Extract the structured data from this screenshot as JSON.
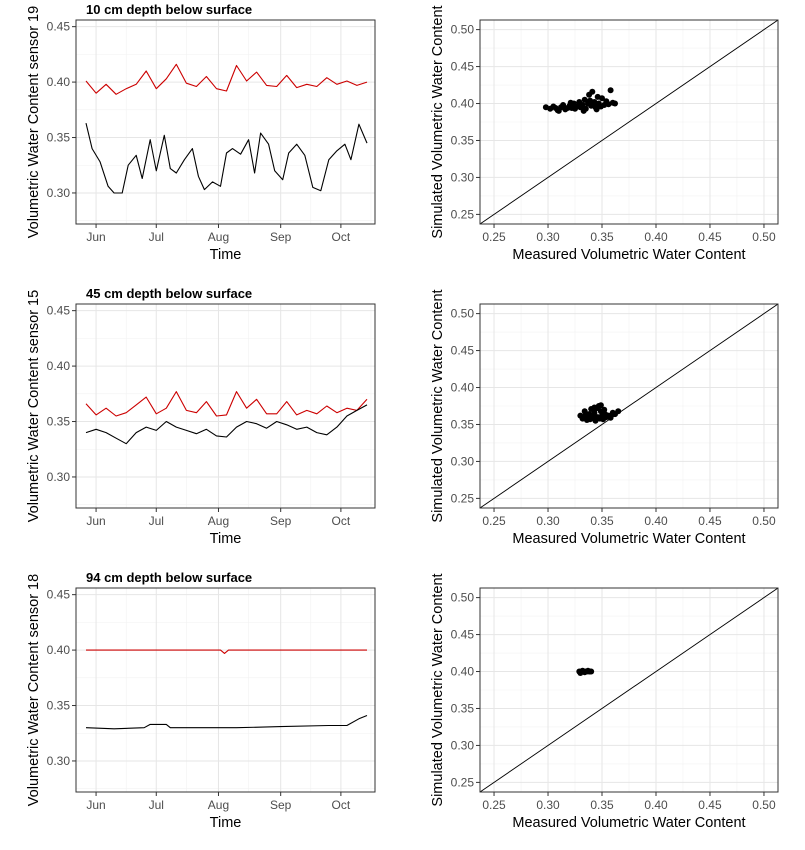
{
  "chart_data": [
    {
      "type": "line",
      "title": "10 cm depth below surface",
      "xlabel": "Time",
      "ylabel": "Volumetric Water Content sensor 19",
      "x_ticks": [
        "Jun",
        "Jul",
        "Aug",
        "Sep",
        "Oct"
      ],
      "x_range": [
        "2017-05-22",
        "2017-10-18"
      ],
      "ylim": [
        0.272,
        0.456
      ],
      "y_ticks": [
        "0.30",
        "0.35",
        "0.40",
        "0.45"
      ],
      "grid": true,
      "colors": {
        "simulated": "#cc0000",
        "measured": "#000000"
      },
      "series": [
        {
          "x": [
            "2017-05-27",
            "2017-06-01",
            "2017-06-06",
            "2017-06-11",
            "2017-06-16",
            "2017-06-21",
            "2017-06-26",
            "2017-07-01",
            "2017-07-06",
            "2017-07-11",
            "2017-07-16",
            "2017-07-21",
            "2017-07-26",
            "2017-07-31",
            "2017-08-05",
            "2017-08-10",
            "2017-08-15",
            "2017-08-20",
            "2017-08-25",
            "2017-08-30",
            "2017-09-04",
            "2017-09-09",
            "2017-09-14",
            "2017-09-19",
            "2017-09-24",
            "2017-09-29",
            "2017-10-04",
            "2017-10-09",
            "2017-10-14"
          ],
          "values": [
            0.401,
            0.39,
            0.398,
            0.389,
            0.394,
            0.398,
            0.41,
            0.394,
            0.403,
            0.416,
            0.399,
            0.396,
            0.405,
            0.394,
            0.392,
            0.415,
            0.401,
            0.409,
            0.397,
            0.396,
            0.406,
            0.395,
            0.398,
            0.396,
            0.404,
            0.398,
            0.401,
            0.397,
            0.4
          ]
        },
        {
          "x": [
            "2017-05-27",
            "2017-05-30",
            "2017-06-03",
            "2017-06-07",
            "2017-06-10",
            "2017-06-14",
            "2017-06-17",
            "2017-06-21",
            "2017-06-24",
            "2017-06-28",
            "2017-07-01",
            "2017-07-05",
            "2017-07-08",
            "2017-07-11",
            "2017-07-15",
            "2017-07-19",
            "2017-07-22",
            "2017-07-25",
            "2017-07-29",
            "2017-08-02",
            "2017-08-05",
            "2017-08-08",
            "2017-08-12",
            "2017-08-16",
            "2017-08-19",
            "2017-08-22",
            "2017-08-26",
            "2017-08-29",
            "2017-09-02",
            "2017-09-05",
            "2017-09-09",
            "2017-09-13",
            "2017-09-17",
            "2017-09-21",
            "2017-09-25",
            "2017-09-29",
            "2017-10-03",
            "2017-10-06",
            "2017-10-10",
            "2017-10-14"
          ],
          "values": [
            0.363,
            0.34,
            0.328,
            0.306,
            0.3,
            0.3,
            0.325,
            0.334,
            0.313,
            0.348,
            0.32,
            0.352,
            0.322,
            0.318,
            0.33,
            0.34,
            0.315,
            0.303,
            0.31,
            0.306,
            0.336,
            0.34,
            0.335,
            0.348,
            0.318,
            0.354,
            0.344,
            0.32,
            0.312,
            0.336,
            0.344,
            0.334,
            0.305,
            0.302,
            0.33,
            0.338,
            0.344,
            0.33,
            0.362,
            0.345
          ]
        }
      ]
    },
    {
      "type": "scatter",
      "xlabel": "Measured Volumetric Water Content",
      "ylabel": "Simulated Volumetric Water Content",
      "xlim": [
        0.237,
        0.513
      ],
      "ylim": [
        0.237,
        0.513
      ],
      "x_ticks": [
        "0.25",
        "0.30",
        "0.35",
        "0.40",
        "0.45",
        "0.50"
      ],
      "y_ticks": [
        "0.25",
        "0.30",
        "0.35",
        "0.40",
        "0.45",
        "0.50"
      ],
      "reference_line": "1:1",
      "grid": true,
      "points": [
        [
          0.298,
          0.395
        ],
        [
          0.302,
          0.393
        ],
        [
          0.305,
          0.396
        ],
        [
          0.307,
          0.394
        ],
        [
          0.31,
          0.39
        ],
        [
          0.312,
          0.395
        ],
        [
          0.314,
          0.398
        ],
        [
          0.316,
          0.392
        ],
        [
          0.318,
          0.394
        ],
        [
          0.32,
          0.397
        ],
        [
          0.322,
          0.394
        ],
        [
          0.324,
          0.4
        ],
        [
          0.325,
          0.393
        ],
        [
          0.327,
          0.396
        ],
        [
          0.329,
          0.402
        ],
        [
          0.33,
          0.395
        ],
        [
          0.332,
          0.398
        ],
        [
          0.334,
          0.405
        ],
        [
          0.335,
          0.393
        ],
        [
          0.337,
          0.4
        ],
        [
          0.338,
          0.412
        ],
        [
          0.34,
          0.397
        ],
        [
          0.341,
          0.416
        ],
        [
          0.343,
          0.402
        ],
        [
          0.344,
          0.395
        ],
        [
          0.346,
          0.409
        ],
        [
          0.347,
          0.4
        ],
        [
          0.349,
          0.396
        ],
        [
          0.35,
          0.407
        ],
        [
          0.352,
          0.398
        ],
        [
          0.354,
          0.403
        ],
        [
          0.356,
          0.399
        ],
        [
          0.358,
          0.418
        ],
        [
          0.36,
          0.401
        ],
        [
          0.362,
          0.4
        ],
        [
          0.309,
          0.391
        ],
        [
          0.321,
          0.401
        ],
        [
          0.333,
          0.39
        ],
        [
          0.345,
          0.392
        ],
        [
          0.339,
          0.404
        ]
      ]
    },
    {
      "type": "line",
      "title": "45 cm depth below surface",
      "xlabel": "Time",
      "ylabel": "Volumetric Water Content sensor 15",
      "x_ticks": [
        "Jun",
        "Jul",
        "Aug",
        "Sep",
        "Oct"
      ],
      "x_range": [
        "2017-05-22",
        "2017-10-18"
      ],
      "ylim": [
        0.272,
        0.456
      ],
      "y_ticks": [
        "0.30",
        "0.35",
        "0.40",
        "0.45"
      ],
      "grid": true,
      "colors": {
        "simulated": "#cc0000",
        "measured": "#000000"
      },
      "series": [
        {
          "x": [
            "2017-05-27",
            "2017-06-01",
            "2017-06-06",
            "2017-06-11",
            "2017-06-16",
            "2017-06-21",
            "2017-06-26",
            "2017-07-01",
            "2017-07-06",
            "2017-07-11",
            "2017-07-16",
            "2017-07-21",
            "2017-07-26",
            "2017-07-31",
            "2017-08-05",
            "2017-08-10",
            "2017-08-15",
            "2017-08-20",
            "2017-08-25",
            "2017-08-30",
            "2017-09-04",
            "2017-09-09",
            "2017-09-14",
            "2017-09-19",
            "2017-09-24",
            "2017-09-29",
            "2017-10-04",
            "2017-10-09",
            "2017-10-14"
          ],
          "values": [
            0.366,
            0.356,
            0.362,
            0.355,
            0.358,
            0.365,
            0.372,
            0.357,
            0.362,
            0.377,
            0.36,
            0.358,
            0.368,
            0.355,
            0.356,
            0.377,
            0.362,
            0.37,
            0.357,
            0.357,
            0.368,
            0.356,
            0.36,
            0.357,
            0.364,
            0.358,
            0.362,
            0.36,
            0.37
          ]
        },
        {
          "x": [
            "2017-05-27",
            "2017-06-01",
            "2017-06-06",
            "2017-06-11",
            "2017-06-16",
            "2017-06-21",
            "2017-06-26",
            "2017-07-01",
            "2017-07-06",
            "2017-07-11",
            "2017-07-16",
            "2017-07-21",
            "2017-07-26",
            "2017-07-31",
            "2017-08-05",
            "2017-08-10",
            "2017-08-15",
            "2017-08-20",
            "2017-08-25",
            "2017-08-30",
            "2017-09-04",
            "2017-09-09",
            "2017-09-14",
            "2017-09-19",
            "2017-09-24",
            "2017-09-29",
            "2017-10-04",
            "2017-10-09",
            "2017-10-14"
          ],
          "values": [
            0.34,
            0.343,
            0.34,
            0.335,
            0.33,
            0.34,
            0.345,
            0.342,
            0.35,
            0.345,
            0.342,
            0.339,
            0.343,
            0.337,
            0.336,
            0.345,
            0.35,
            0.348,
            0.344,
            0.35,
            0.347,
            0.343,
            0.345,
            0.34,
            0.338,
            0.345,
            0.355,
            0.36,
            0.365
          ]
        }
      ]
    },
    {
      "type": "scatter",
      "xlabel": "Measured Volumetric Water Content",
      "ylabel": "Simulated Volumetric Water Content",
      "xlim": [
        0.237,
        0.513
      ],
      "ylim": [
        0.237,
        0.513
      ],
      "x_ticks": [
        "0.25",
        "0.30",
        "0.35",
        "0.40",
        "0.45",
        "0.50"
      ],
      "y_ticks": [
        "0.25",
        "0.30",
        "0.35",
        "0.40",
        "0.45",
        "0.50"
      ],
      "reference_line": "1:1",
      "grid": true,
      "points": [
        [
          0.33,
          0.362
        ],
        [
          0.332,
          0.358
        ],
        [
          0.334,
          0.368
        ],
        [
          0.336,
          0.356
        ],
        [
          0.337,
          0.36
        ],
        [
          0.338,
          0.364
        ],
        [
          0.339,
          0.357
        ],
        [
          0.34,
          0.371
        ],
        [
          0.341,
          0.359
        ],
        [
          0.342,
          0.362
        ],
        [
          0.343,
          0.366
        ],
        [
          0.344,
          0.355
        ],
        [
          0.345,
          0.372
        ],
        [
          0.346,
          0.36
        ],
        [
          0.347,
          0.375
        ],
        [
          0.348,
          0.358
        ],
        [
          0.349,
          0.368
        ],
        [
          0.35,
          0.362
        ],
        [
          0.351,
          0.357
        ],
        [
          0.352,
          0.37
        ],
        [
          0.353,
          0.364
        ],
        [
          0.354,
          0.36
        ],
        [
          0.356,
          0.362
        ],
        [
          0.358,
          0.359
        ],
        [
          0.36,
          0.366
        ],
        [
          0.362,
          0.364
        ],
        [
          0.365,
          0.368
        ],
        [
          0.335,
          0.363
        ],
        [
          0.343,
          0.373
        ],
        [
          0.349,
          0.376
        ]
      ]
    },
    {
      "type": "line",
      "title": "94 cm depth below surface",
      "xlabel": "Time",
      "ylabel": "Volumetric Water Content sensor 18",
      "x_ticks": [
        "Jun",
        "Jul",
        "Aug",
        "Sep",
        "Oct"
      ],
      "x_range": [
        "2017-05-22",
        "2017-10-18"
      ],
      "ylim": [
        0.272,
        0.456
      ],
      "y_ticks": [
        "0.30",
        "0.35",
        "0.40",
        "0.45"
      ],
      "grid": true,
      "colors": {
        "simulated": "#cc0000",
        "measured": "#000000"
      },
      "series": [
        {
          "x": [
            "2017-05-27",
            "2017-08-02",
            "2017-08-04",
            "2017-08-06",
            "2017-10-14"
          ],
          "values": [
            0.4,
            0.4,
            0.397,
            0.4,
            0.4
          ]
        },
        {
          "x": [
            "2017-05-27",
            "2017-06-10",
            "2017-06-25",
            "2017-06-28",
            "2017-07-06",
            "2017-07-08",
            "2017-07-26",
            "2017-08-10",
            "2017-09-01",
            "2017-09-25",
            "2017-10-04",
            "2017-10-10",
            "2017-10-14"
          ],
          "values": [
            0.33,
            0.329,
            0.33,
            0.333,
            0.333,
            0.33,
            0.33,
            0.33,
            0.331,
            0.332,
            0.332,
            0.338,
            0.341
          ]
        }
      ]
    },
    {
      "type": "scatter",
      "xlabel": "Measured Volumetric Water Content",
      "ylabel": "Simulated Volumetric Water Content",
      "xlim": [
        0.237,
        0.513
      ],
      "ylim": [
        0.237,
        0.513
      ],
      "x_ticks": [
        "0.25",
        "0.30",
        "0.35",
        "0.40",
        "0.45",
        "0.50"
      ],
      "y_ticks": [
        "0.25",
        "0.30",
        "0.35",
        "0.40",
        "0.45",
        "0.50"
      ],
      "reference_line": "1:1",
      "grid": true,
      "points": [
        [
          0.329,
          0.4
        ],
        [
          0.33,
          0.398
        ],
        [
          0.331,
          0.4
        ],
        [
          0.332,
          0.401
        ],
        [
          0.333,
          0.4
        ],
        [
          0.334,
          0.399
        ],
        [
          0.335,
          0.4
        ],
        [
          0.336,
          0.4
        ],
        [
          0.337,
          0.401
        ],
        [
          0.338,
          0.4
        ],
        [
          0.339,
          0.4
        ],
        [
          0.34,
          0.4
        ]
      ]
    }
  ]
}
